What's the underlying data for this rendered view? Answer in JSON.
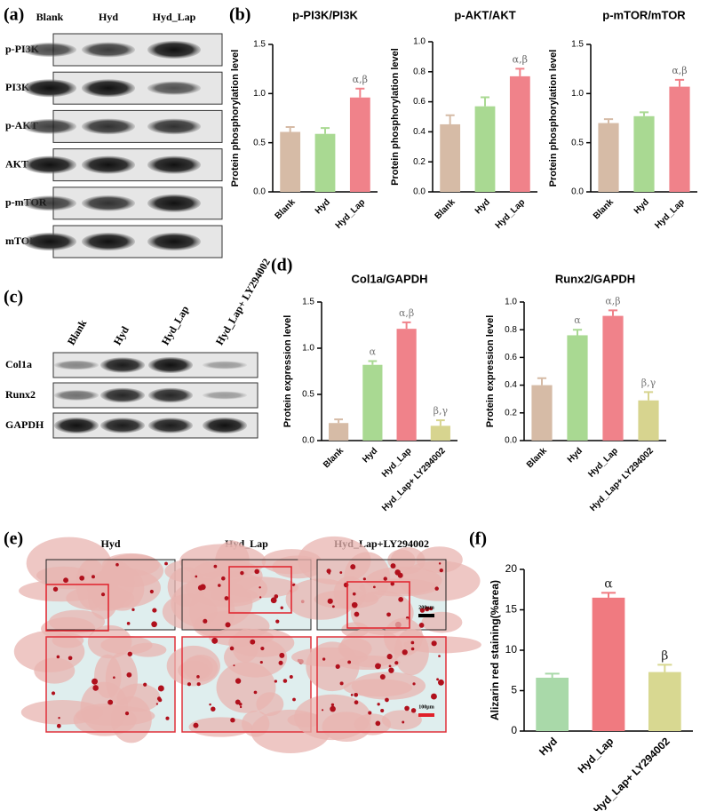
{
  "figure": {
    "panel_labels": [
      "(a)",
      "(b)",
      "(c)",
      "(d)",
      "(e)",
      "(f)"
    ],
    "blot_a": {
      "columns": [
        "Blank",
        "Hyd",
        "Hyd_Lap"
      ],
      "rows": [
        "p-PI3K",
        "PI3K",
        "p-AKT",
        "AKT",
        "p-mTOR",
        "mTOR"
      ]
    },
    "blot_c": {
      "columns": [
        "Blank",
        "Hyd",
        "Hyd_Lap",
        "Hyd_Lap+ LY294002"
      ],
      "rows": [
        "Col1a",
        "Runx2",
        "GAPDH"
      ]
    },
    "micrographs_e": {
      "columns": [
        "Hyd",
        "Hyd_Lap",
        "Hyd_Lap+LY294002"
      ],
      "scale_bars": [
        "200μm",
        "100μm"
      ]
    }
  },
  "chart_data": [
    {
      "type": "bar",
      "title": "p-PI3K/PI3K",
      "ylabel": "Protein phosphorylation level",
      "categories": [
        "Blank",
        "Hyd",
        "Hyd_Lap"
      ],
      "values": [
        0.61,
        0.59,
        0.96
      ],
      "errors": [
        0.05,
        0.06,
        0.09
      ],
      "colors": [
        "#d6bba6",
        "#a9d992",
        "#f0828a"
      ],
      "annotations": [
        null,
        null,
        "α,β"
      ],
      "ylim": [
        0,
        1.5
      ],
      "yticks": [
        {
          "value": 0,
          "label": "0.0"
        },
        0.5,
        {
          "value": 1,
          "label": "1.0"
        },
        1.5
      ]
    },
    {
      "type": "bar",
      "title": "p-AKT/AKT",
      "ylabel": "Protein phosphorylation level",
      "categories": [
        "Blank",
        "Hyd",
        "Hyd_Lap"
      ],
      "values": [
        0.45,
        0.57,
        0.77
      ],
      "errors": [
        0.06,
        0.06,
        0.05
      ],
      "colors": [
        "#d6bba6",
        "#a9d992",
        "#f0828a"
      ],
      "annotations": [
        null,
        null,
        "α,β"
      ],
      "ylim": [
        0,
        1
      ],
      "yticks": [
        {
          "value": 0,
          "label": "0.0"
        },
        0.2,
        0.4,
        0.6,
        0.8,
        {
          "value": 1,
          "label": "1.0"
        }
      ]
    },
    {
      "type": "bar",
      "title": "p-mTOR/mTOR",
      "ylabel": "Protein phosphorylation level",
      "categories": [
        "Blank",
        "Hyd",
        "Hyd_Lap"
      ],
      "values": [
        0.7,
        0.77,
        1.07
      ],
      "errors": [
        0.04,
        0.04,
        0.07
      ],
      "colors": [
        "#d6bba6",
        "#a9d992",
        "#f0828a"
      ],
      "annotations": [
        null,
        null,
        "α,β"
      ],
      "ylim": [
        0,
        1.5
      ],
      "yticks": [
        {
          "value": 0,
          "label": "0.0"
        },
        0.5,
        {
          "value": 1,
          "label": "1.0"
        },
        1.5
      ]
    },
    {
      "type": "bar",
      "title": "Col1a/GAPDH",
      "ylabel": "Protein expression level",
      "categories": [
        "Blank",
        "Hyd",
        "Hyd_Lap",
        "Hyd_Lap+ LY294002"
      ],
      "values": [
        0.19,
        0.82,
        1.21,
        0.16
      ],
      "errors": [
        0.04,
        0.04,
        0.07,
        0.06
      ],
      "colors": [
        "#d6bba6",
        "#a9d992",
        "#f0828a",
        "#d7d48f"
      ],
      "annotations": [
        null,
        "α",
        "α,β",
        "β,γ"
      ],
      "ylim": [
        0,
        1.5
      ],
      "yticks": [
        {
          "value": 0,
          "label": "0.0"
        },
        0.5,
        {
          "value": 1,
          "label": "1.0"
        },
        1.5
      ]
    },
    {
      "type": "bar",
      "title": "Runx2/GAPDH",
      "ylabel": "Protein expression level",
      "categories": [
        "Blank",
        "Hyd",
        "Hyd_Lap",
        "Hyd_Lap+ LY294002"
      ],
      "values": [
        0.4,
        0.76,
        0.9,
        0.29
      ],
      "errors": [
        0.05,
        0.04,
        0.04,
        0.06
      ],
      "colors": [
        "#d6bba6",
        "#a9d992",
        "#f0828a",
        "#d7d48f"
      ],
      "annotations": [
        null,
        "α",
        "α,β",
        "β,γ"
      ],
      "ylim": [
        0,
        1
      ],
      "yticks": [
        {
          "value": 0,
          "label": "0.0"
        },
        0.2,
        0.4,
        0.6,
        0.8,
        {
          "value": 1,
          "label": "1.0"
        }
      ]
    },
    {
      "type": "bar",
      "ylabel": "Alizarin red staining(%area)",
      "categories": [
        "Hyd",
        "Hyd_Lap",
        "Hyd_Lap+ LY294002"
      ],
      "values": [
        6.6,
        16.5,
        7.3
      ],
      "errors": [
        0.5,
        0.6,
        0.9
      ],
      "colors": [
        "#a9d9a9",
        "#f07a80",
        "#d8d891"
      ],
      "annotations": [
        null,
        "α",
        "β"
      ],
      "ylim": [
        0,
        20
      ],
      "yticks": [
        0,
        5,
        10,
        15,
        20
      ]
    }
  ]
}
